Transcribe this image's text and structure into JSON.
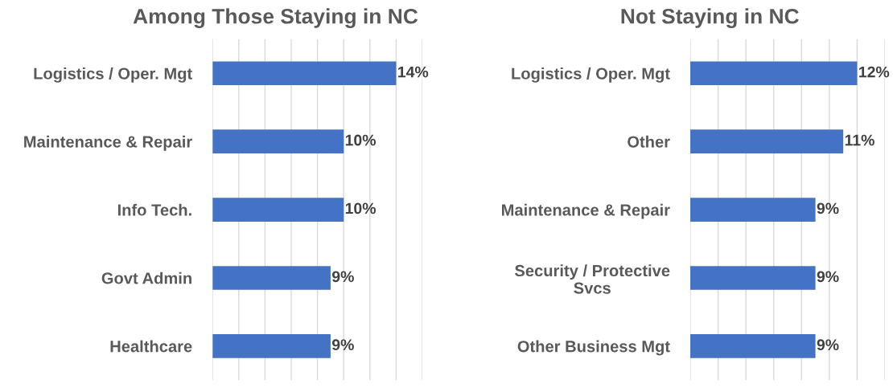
{
  "chart_data": [
    {
      "type": "bar",
      "orientation": "horizontal",
      "title": "Among Those Staying in NC",
      "categories": [
        "Logistics / Oper. Mgt",
        "Maintenance & Repair",
        "Info Tech.",
        "Govt Admin",
        "Healthcare"
      ],
      "values": [
        14,
        10,
        10,
        9,
        9
      ],
      "color": "#4472c4",
      "value_labels": [
        "14%",
        "10%",
        "10%",
        "9%",
        "9%"
      ],
      "xlim": [
        0,
        16
      ],
      "xticks": [
        {
          "value": 0,
          "label": null
        },
        {
          "value": 2,
          "label": null
        },
        {
          "value": 4,
          "label": null
        },
        {
          "value": 6,
          "label": null
        },
        {
          "value": 8,
          "label": null
        },
        {
          "value": 10,
          "label": null
        },
        {
          "value": 12,
          "label": null
        },
        {
          "value": 14,
          "label": null
        },
        {
          "value": 16,
          "label": null
        }
      ],
      "grid": "x",
      "tick_labels": "y",
      "legend": false
    },
    {
      "type": "bar",
      "orientation": "horizontal",
      "title": "Not Staying in NC",
      "categories": [
        "Logistics / Oper. Mgt",
        "Other",
        "Maintenance & Repair",
        "Security / Protective\nSvcs",
        "Other Business Mgt"
      ],
      "values": [
        12,
        11,
        9,
        9,
        9
      ],
      "color": "#4472c4",
      "value_labels": [
        "12%",
        "11%",
        "9%",
        "9%",
        "9%"
      ],
      "xlim": [
        0,
        14
      ],
      "xticks": [
        {
          "value": 0,
          "label": null
        },
        {
          "value": 2,
          "label": null
        },
        {
          "value": 4,
          "label": null
        },
        {
          "value": 6,
          "label": null
        },
        {
          "value": 8,
          "label": null
        },
        {
          "value": 10,
          "label": null
        },
        {
          "value": 12,
          "label": null
        },
        {
          "value": 14,
          "label": null
        }
      ],
      "grid": "x",
      "tick_labels": "y",
      "legend": false
    }
  ]
}
